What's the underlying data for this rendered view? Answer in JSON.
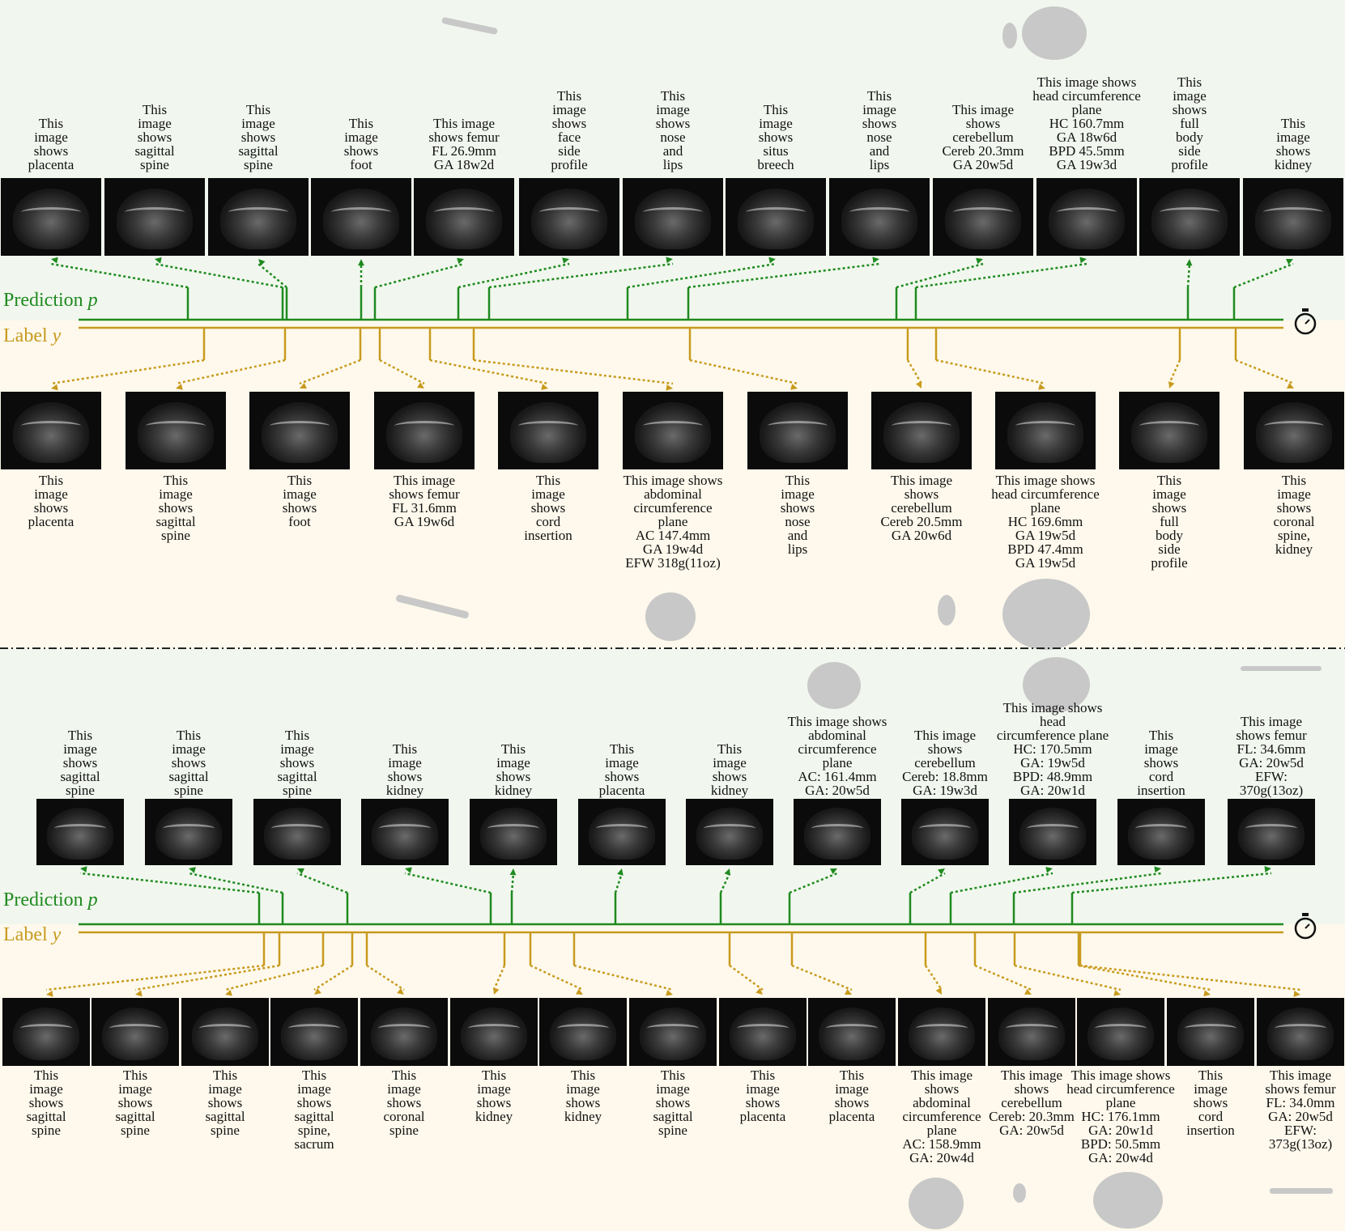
{
  "colors": {
    "prediction": "#1f8a1f",
    "label": "#c89a1e",
    "prediction_bg": "#f1f7ee",
    "label_bg": "#fef9ec"
  },
  "legend": {
    "prediction_text": "Prediction ",
    "prediction_symbol": "p",
    "label_text": "Label ",
    "label_symbol": "y"
  },
  "timer_icon": "stopwatch-icon",
  "sections": [
    {
      "predictions": [
        "This\nimage\nshows\nplacenta",
        "This\nimage\nshows\nsagittal\nspine",
        "This\nimage\nshows\nsagittal\nspine",
        "This\nimage\nshows\nfoot",
        "This image\nshows  femur\nFL 26.9mm\nGA 18w2d",
        "This\nimage\nshows\nface\nside\nprofile",
        "This\nimage\nshows\nnose\nand\nlips",
        "This\nimage\nshows\nsitus\nbreech",
        "This\nimage\nshows\nnose\nand\nlips",
        "This image\nshows\ncerebellum\nCereb 20.3mm\nGA 20w5d",
        "This image shows\nhead circumference\nplane\nHC 160.7mm\nGA 18w6d\nBPD 45.5mm\nGA 19w3d",
        "This\nimage\nshows\nfull\nbody\nside\nprofile",
        "This\nimage\nshows\nkidney"
      ],
      "labels": [
        "This\nimage\nshows\nplacenta",
        "This\nimage\nshows\nsagittal\nspine",
        "This\nimage\nshows\nfoot",
        "This image\nshows  femur\nFL 31.6mm\nGA 19w6d",
        "This\nimage\nshows\ncord\ninsertion",
        "This image shows\nabdominal\ncircumference\nplane\nAC 147.4mm\nGA 19w4d\nEFW 318g(11oz)",
        "This\nimage\nshows\nnose\nand\nlips",
        "This image\nshows\ncerebellum\nCereb 20.5mm\nGA 20w6d",
        "This image shows\nhead circumference\nplane\nHC 169.6mm\nGA 19w5d\nBPD 47.4mm\nGA 19w5d",
        "This\nimage\nshows\nfull\nbody\nside\nprofile",
        "This\nimage\nshows\ncoronal\nspine,\nkidney"
      ]
    },
    {
      "predictions": [
        "This\nimage\nshows\nsagittal\nspine",
        "This\nimage\nshows\nsagittal\nspine",
        "This\nimage\nshows\nsagittal\nspine",
        "This\nimage\nshows\nkidney",
        "This\nimage\nshows\nkidney",
        "This\nimage\nshows\nplacenta",
        "This\nimage\nshows\nkidney",
        "This image shows\nabdominal\ncircumference\nplane\nAC: 161.4mm\nGA: 20w5d",
        "This image\nshows\ncerebellum\nCereb: 18.8mm\nGA: 19w3d",
        "This image shows  head\ncircumference plane\nHC: 170.5mm\nGA: 19w5d\nBPD: 48.9mm\nGA: 20w1d",
        "This\nimage\nshows\ncord\ninsertion",
        "This image\nshows  femur\nFL: 34.6mm\nGA: 20w5d\nEFW:\n370g(13oz)"
      ],
      "labels": [
        "This\nimage\nshows\nsagittal\nspine",
        "This\nimage\nshows\nsagittal\nspine",
        "This\nimage\nshows\nsagittal\nspine",
        "This\nimage\nshows\nsagittal\nspine,\nsacrum",
        "This\nimage\nshows\ncoronal\nspine",
        "This\nimage\nshows\nkidney",
        "This\nimage\nshows\nkidney",
        "This\nimage\nshows\nsagittal\nspine",
        "This\nimage\nshows\nplacenta",
        "This\nimage\nshows\nplacenta",
        "This image\nshows\nabdominal\ncircumference\nplane\nAC: 158.9mm\nGA: 20w4d",
        "This image\nshows\ncerebellum\nCereb: 20.3mm\nGA: 20w5d",
        "This image shows\nhead circumference\nplane\nHC: 176.1mm\nGA: 20w1d\nBPD: 50.5mm\nGA: 20w4d",
        "This\nimage\nshows\ncord\ninsertion",
        "This image\nshows  femur\nFL: 34.0mm\nGA: 20w5d\nEFW:\n373g(13oz)"
      ]
    }
  ]
}
